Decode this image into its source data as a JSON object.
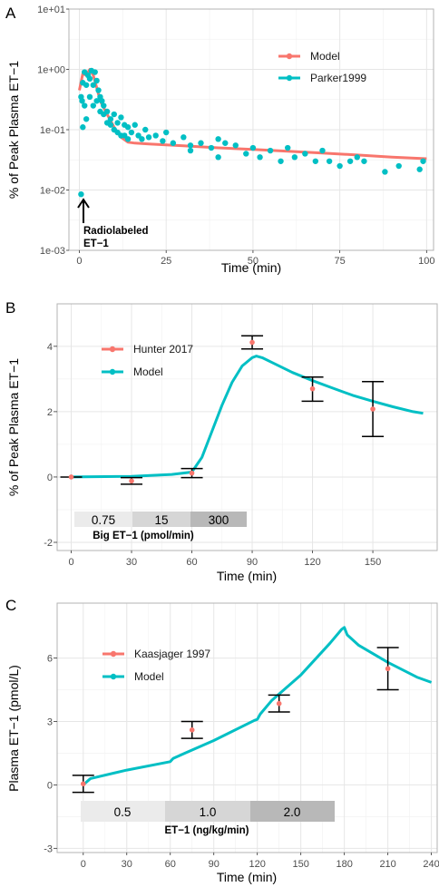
{
  "chart_data": [
    {
      "panel": "A",
      "type": "scatter",
      "ylabel": "% of Peak Plasma ET−1",
      "xlabel": "Time (min)",
      "ylog": true,
      "xlim": [
        -3,
        102
      ],
      "ylim": [
        0.001,
        10
      ],
      "xticks": [
        "0",
        "25",
        "50",
        "75",
        "100"
      ],
      "yticks": [
        "1e-03",
        "1e-02",
        "1e-01",
        "1e+00",
        "1e+01"
      ],
      "legend": {
        "position": "top-right",
        "entries": [
          "Model",
          "Parker1999"
        ]
      },
      "annotation": {
        "text": [
          "Radiolabeled",
          "ET−1"
        ],
        "x": 0.5,
        "y": 0.008
      },
      "series": [
        {
          "name": "Model",
          "kind": "line",
          "color": "#F8766D",
          "x": [
            0,
            1,
            2,
            3,
            4,
            5,
            6,
            8,
            10,
            12,
            14,
            16,
            20,
            30,
            40,
            50,
            60,
            70,
            80,
            90,
            100
          ],
          "y": [
            0.45,
            0.85,
            0.8,
            1.0,
            0.8,
            0.5,
            0.3,
            0.18,
            0.11,
            0.075,
            0.062,
            0.06,
            0.058,
            0.054,
            0.05,
            0.047,
            0.044,
            0.041,
            0.038,
            0.035,
            0.033
          ]
        },
        {
          "name": "Parker1999",
          "kind": "points",
          "color": "#00BFC4",
          "x": [
            0.5,
            0.5,
            0.8,
            1,
            1,
            1.5,
            1.5,
            2,
            2,
            2.5,
            3,
            3,
            3.5,
            4,
            4,
            4.5,
            5,
            5,
            5.5,
            6,
            6,
            6.5,
            7,
            7,
            8,
            8,
            9,
            9,
            10,
            10,
            11,
            11,
            12,
            12,
            13,
            13,
            14,
            14,
            15,
            16,
            17,
            18,
            19,
            20,
            22,
            24,
            25,
            27,
            30,
            32,
            32,
            35,
            38,
            40,
            40,
            42,
            45,
            48,
            50,
            52,
            55,
            58,
            60,
            62,
            65,
            68,
            70,
            72,
            75,
            78,
            80,
            82,
            88,
            92,
            98,
            99
          ],
          "y": [
            0.0085,
            0.35,
            0.3,
            0.6,
            0.11,
            0.9,
            0.25,
            0.55,
            0.15,
            0.8,
            0.7,
            0.35,
            0.95,
            0.55,
            0.25,
            0.9,
            0.65,
            0.3,
            0.45,
            0.35,
            0.2,
            0.3,
            0.25,
            0.18,
            0.2,
            0.13,
            0.15,
            0.12,
            0.18,
            0.1,
            0.13,
            0.09,
            0.16,
            0.08,
            0.12,
            0.08,
            0.11,
            0.07,
            0.09,
            0.12,
            0.08,
            0.07,
            0.1,
            0.075,
            0.08,
            0.065,
            0.09,
            0.06,
            0.075,
            0.055,
            0.045,
            0.06,
            0.05,
            0.07,
            0.035,
            0.06,
            0.055,
            0.04,
            0.05,
            0.035,
            0.045,
            0.03,
            0.05,
            0.035,
            0.04,
            0.03,
            0.045,
            0.03,
            0.025,
            0.03,
            0.035,
            0.03,
            0.02,
            0.025,
            0.022,
            0.03
          ]
        }
      ]
    },
    {
      "panel": "B",
      "type": "line",
      "ylabel": "% of Peak Plasma ET−1",
      "xlabel": "Time (min)",
      "xlim": [
        -7,
        182
      ],
      "ylim": [
        -2.25,
        5.3
      ],
      "xticks": [
        0,
        30,
        60,
        90,
        120,
        150
      ],
      "yticks": [
        -2,
        0,
        2,
        4
      ],
      "legend": {
        "position": "top-left",
        "entries": [
          "Hunter 2017",
          "Model"
        ]
      },
      "dose": {
        "blocks": [
          [
            0,
            30,
            "0.75"
          ],
          [
            30,
            60,
            "15"
          ],
          [
            60,
            90,
            "300"
          ]
        ],
        "label": "Big ET−1 (pmol/min)"
      },
      "series": [
        {
          "name": "Model",
          "kind": "line",
          "color": "#00BFC4",
          "x": [
            0,
            30,
            50,
            60,
            65,
            70,
            75,
            80,
            85,
            90,
            92,
            95,
            100,
            110,
            120,
            130,
            140,
            150,
            160,
            170,
            175
          ],
          "y": [
            0,
            0.02,
            0.08,
            0.15,
            0.6,
            1.4,
            2.2,
            2.9,
            3.4,
            3.65,
            3.7,
            3.65,
            3.5,
            3.2,
            2.95,
            2.72,
            2.5,
            2.32,
            2.15,
            2.0,
            1.95
          ]
        },
        {
          "name": "Hunter 2017",
          "kind": "points_error",
          "color": "#F8766D",
          "x": [
            0,
            30,
            60,
            90,
            120,
            150
          ],
          "y": [
            0,
            -0.12,
            0.12,
            4.12,
            2.7,
            2.08
          ],
          "err_lo": [
            0,
            -0.22,
            -0.02,
            3.92,
            2.32,
            1.24
          ],
          "err_hi": [
            0,
            -0.02,
            0.26,
            4.32,
            3.06,
            2.92
          ]
        }
      ]
    },
    {
      "panel": "C",
      "type": "line",
      "ylabel": "Plasma ET−1 (pmol/L)",
      "xlabel": "Time (min)",
      "xlim": [
        -18,
        244
      ],
      "ylim": [
        -3.2,
        8.6
      ],
      "xticks": [
        0,
        30,
        60,
        90,
        120,
        150,
        180,
        210,
        240
      ],
      "yticks": [
        -3,
        0,
        3,
        6
      ],
      "legend": {
        "position": "top-left",
        "entries": [
          "Kaasjager 1997",
          "Model"
        ]
      },
      "dose": {
        "blocks": [
          [
            0,
            60,
            "0.5"
          ],
          [
            60,
            120,
            "1.0"
          ],
          [
            120,
            180,
            "2.0"
          ]
        ],
        "label": "ET−1 (ng/kg/min)"
      },
      "series": [
        {
          "name": "Model",
          "kind": "line",
          "color": "#00BFC4",
          "x": [
            0,
            5,
            30,
            60,
            62,
            70,
            90,
            118,
            120,
            122,
            130,
            150,
            170,
            178,
            180,
            182,
            190,
            210,
            230,
            240
          ],
          "y": [
            0,
            0.3,
            0.7,
            1.1,
            1.25,
            1.5,
            2.1,
            3.05,
            3.1,
            3.35,
            4.0,
            5.2,
            6.7,
            7.35,
            7.45,
            7.1,
            6.6,
            5.8,
            5.1,
            4.85
          ]
        },
        {
          "name": "Kaasjager 1997",
          "kind": "points_error",
          "color": "#F8766D",
          "x": [
            0,
            75,
            135,
            210
          ],
          "y": [
            0.05,
            2.6,
            3.85,
            5.5
          ],
          "err_lo": [
            -0.35,
            2.2,
            3.45,
            4.5
          ],
          "err_hi": [
            0.45,
            3.0,
            4.25,
            6.5
          ]
        }
      ]
    }
  ],
  "panels": [
    {
      "letter": "A",
      "ylabel": "% of Peak Plasma ET−1",
      "xlabel": "Time (min)",
      "ytick_labels": [
        "1e-03",
        "1e-02",
        "1e-01",
        "1e+00",
        "1e+01"
      ],
      "xtick_labels": [
        "0",
        "25",
        "50",
        "75",
        "100"
      ],
      "legend": [
        "Model",
        "Parker1999"
      ],
      "annotation": [
        "Radiolabeled",
        "ET−1"
      ]
    },
    {
      "letter": "B",
      "ylabel": "% of Peak Plasma ET−1",
      "xlabel": "Time (min)",
      "ytick_labels": [
        "-2",
        "0",
        "2",
        "4"
      ],
      "xtick_labels": [
        "0",
        "30",
        "60",
        "90",
        "120",
        "150"
      ],
      "legend": [
        "Hunter 2017",
        "Model"
      ],
      "dose_values": [
        "0.75",
        "15",
        "300"
      ],
      "dose_label": "Big ET−1 (pmol/min)"
    },
    {
      "letter": "C",
      "ylabel": "Plasma ET−1 (pmol/L)",
      "xlabel": "Time (min)",
      "ytick_labels": [
        "-3",
        "0",
        "3",
        "6"
      ],
      "xtick_labels": [
        "0",
        "30",
        "60",
        "90",
        "120",
        "150",
        "180",
        "210",
        "240"
      ],
      "legend": [
        "Kaasjager 1997",
        "Model"
      ],
      "dose_values": [
        "0.5",
        "1.0",
        "2.0"
      ],
      "dose_label": "ET−1 (ng/kg/min)"
    }
  ],
  "colors": {
    "salmon": "#F8766D",
    "teal": "#00BFC4",
    "grid_major": "#e6e6e6",
    "grid_minor": "#f2f2f2",
    "frame": "#b3b3b3",
    "dose_light": "#ebebeb",
    "dose_mid": "#d6d6d6",
    "dose_dark": "#b8b8b8"
  }
}
